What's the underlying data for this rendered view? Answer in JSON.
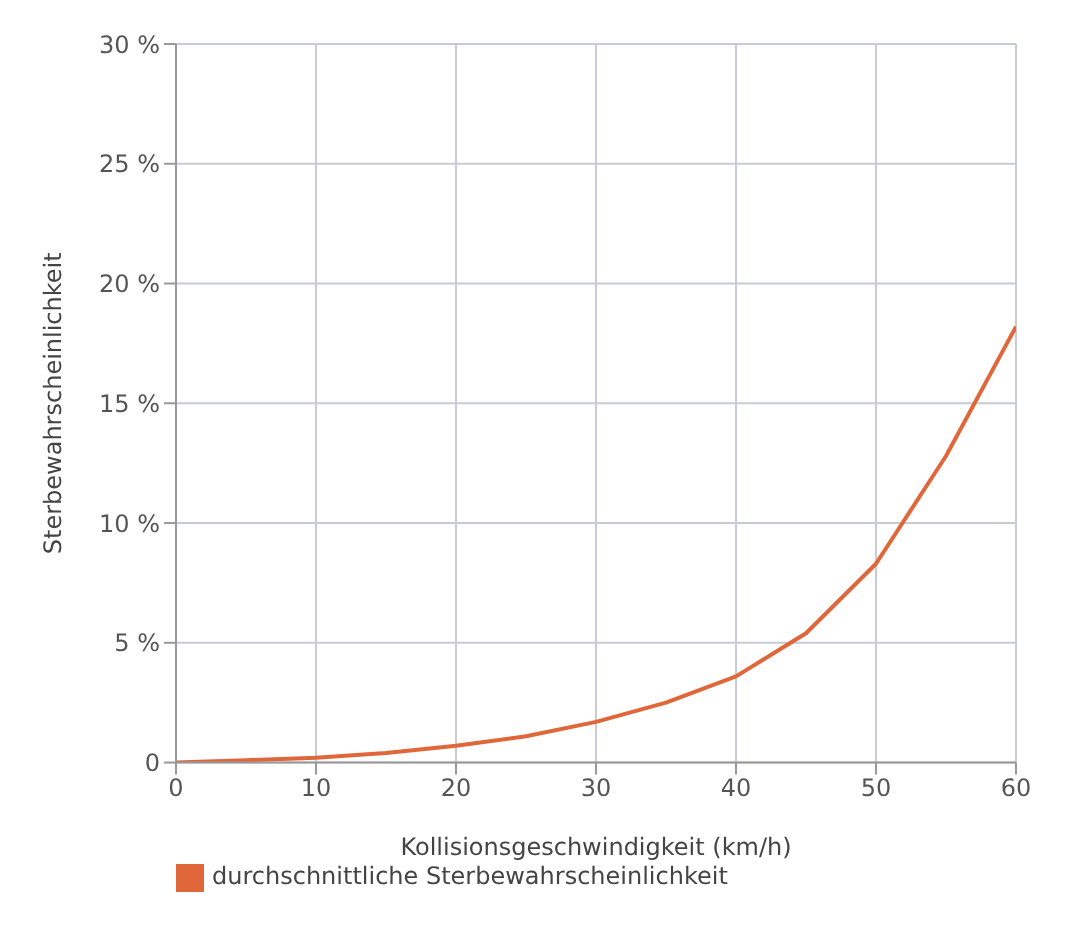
{
  "chart_data": {
    "type": "line",
    "xlabel": "Kollisionsgeschwindigkeit (km/h)",
    "ylabel": "Sterbewahrscheinlichkeit",
    "x": [
      0,
      5,
      10,
      15,
      20,
      25,
      30,
      35,
      40,
      45,
      50,
      55,
      60
    ],
    "series": [
      {
        "name": "durchschnittliche Sterbewahrscheinlichkeit",
        "color": "#e0673a",
        "values": [
          0,
          0.1,
          0.2,
          0.4,
          0.7,
          1.1,
          1.7,
          2.5,
          3.6,
          5.4,
          8.3,
          12.8,
          18.2
        ]
      }
    ],
    "xlim": [
      0,
      60
    ],
    "xticks": [
      0,
      10,
      20,
      30,
      40,
      50,
      60
    ],
    "ylim": [
      0,
      30
    ],
    "yticks": [
      {
        "value": 0,
        "label": "0"
      },
      {
        "value": 5,
        "label": "5 %"
      },
      {
        "value": 10,
        "label": "10 %"
      },
      {
        "value": 15,
        "label": "15 %"
      },
      {
        "value": 20,
        "label": "20 %"
      },
      {
        "value": 25,
        "label": "25 %"
      },
      {
        "value": 30,
        "label": "30 %"
      }
    ],
    "grid": true,
    "legend": "bottom left",
    "marker": "none",
    "line_style": "solid"
  }
}
